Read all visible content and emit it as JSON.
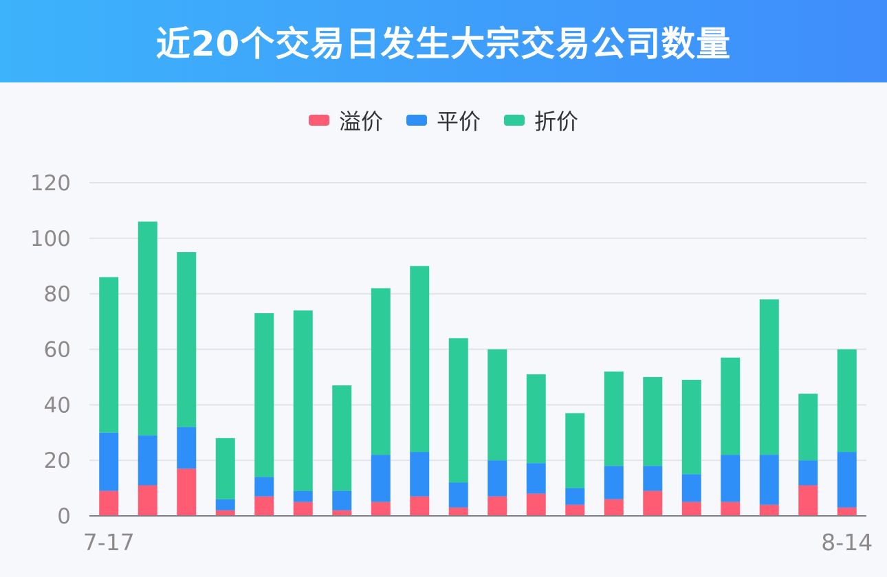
{
  "title": "近20个交易日发生大宗交易公司数量",
  "colors": {
    "header_start": "#3db3fb",
    "header_end": "#3f8dfb",
    "premium": "#fd5c72",
    "par": "#2e8ff8",
    "discount": "#2ccb98",
    "grid": "#e3e3ea",
    "axis_text": "#8f8a8a"
  },
  "chart_data": {
    "type": "bar",
    "stacked": true,
    "x_first_label": "7-17",
    "x_last_label": "8-14",
    "ylim": [
      0,
      120
    ],
    "yticks": [
      "0",
      "20",
      "40",
      "60",
      "80",
      "100",
      "120"
    ],
    "grid": true,
    "legend_position": "top-center",
    "series": [
      {
        "name": "溢价",
        "color": "#fd5c72",
        "values": [
          9,
          11,
          17,
          2,
          7,
          5,
          2,
          5,
          7,
          3,
          7,
          8,
          4,
          6,
          9,
          5,
          5,
          4,
          11,
          3
        ]
      },
      {
        "name": "平价",
        "color": "#2e8ff8",
        "values": [
          21,
          18,
          15,
          4,
          7,
          4,
          7,
          17,
          16,
          9,
          13,
          11,
          6,
          12,
          9,
          10,
          17,
          18,
          9,
          20
        ]
      },
      {
        "name": "折价",
        "color": "#2ccb98",
        "values": [
          56,
          77,
          63,
          22,
          59,
          65,
          38,
          60,
          67,
          52,
          40,
          32,
          27,
          34,
          32,
          34,
          35,
          56,
          24,
          37
        ]
      }
    ]
  }
}
